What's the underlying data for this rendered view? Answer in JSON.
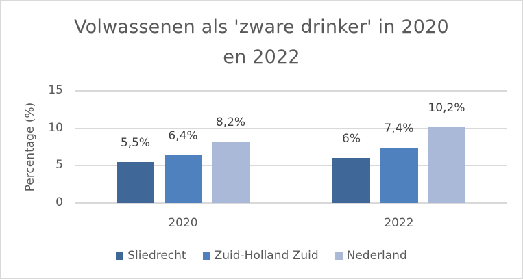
{
  "chart_data": {
    "type": "bar",
    "title": "Volwassenen als 'zware drinker' in 2020 en 2022",
    "title_lines": [
      "Volwassenen als 'zware drinker' in 2020",
      "en 2022"
    ],
    "xlabel": "",
    "ylabel": "Percentage (%)",
    "ylim": [
      0,
      15
    ],
    "yticks": [
      "0",
      "5",
      "10",
      "15"
    ],
    "grid": true,
    "legend_position": "bottom",
    "categories": [
      "2020",
      "2022"
    ],
    "series": [
      {
        "name": "Sliedrecht",
        "color": "#3f6899",
        "values": [
          5.5,
          6.0
        ],
        "labels": [
          "5,5%",
          "6%"
        ]
      },
      {
        "name": "Zuid-Holland Zuid",
        "color": "#4e81bd",
        "values": [
          6.4,
          7.4
        ],
        "labels": [
          "6,4%",
          "7,4%"
        ]
      },
      {
        "name": "Nederland",
        "color": "#aab9d7",
        "values": [
          8.2,
          10.2
        ],
        "labels": [
          "8,2%",
          "10,2%"
        ]
      }
    ]
  }
}
